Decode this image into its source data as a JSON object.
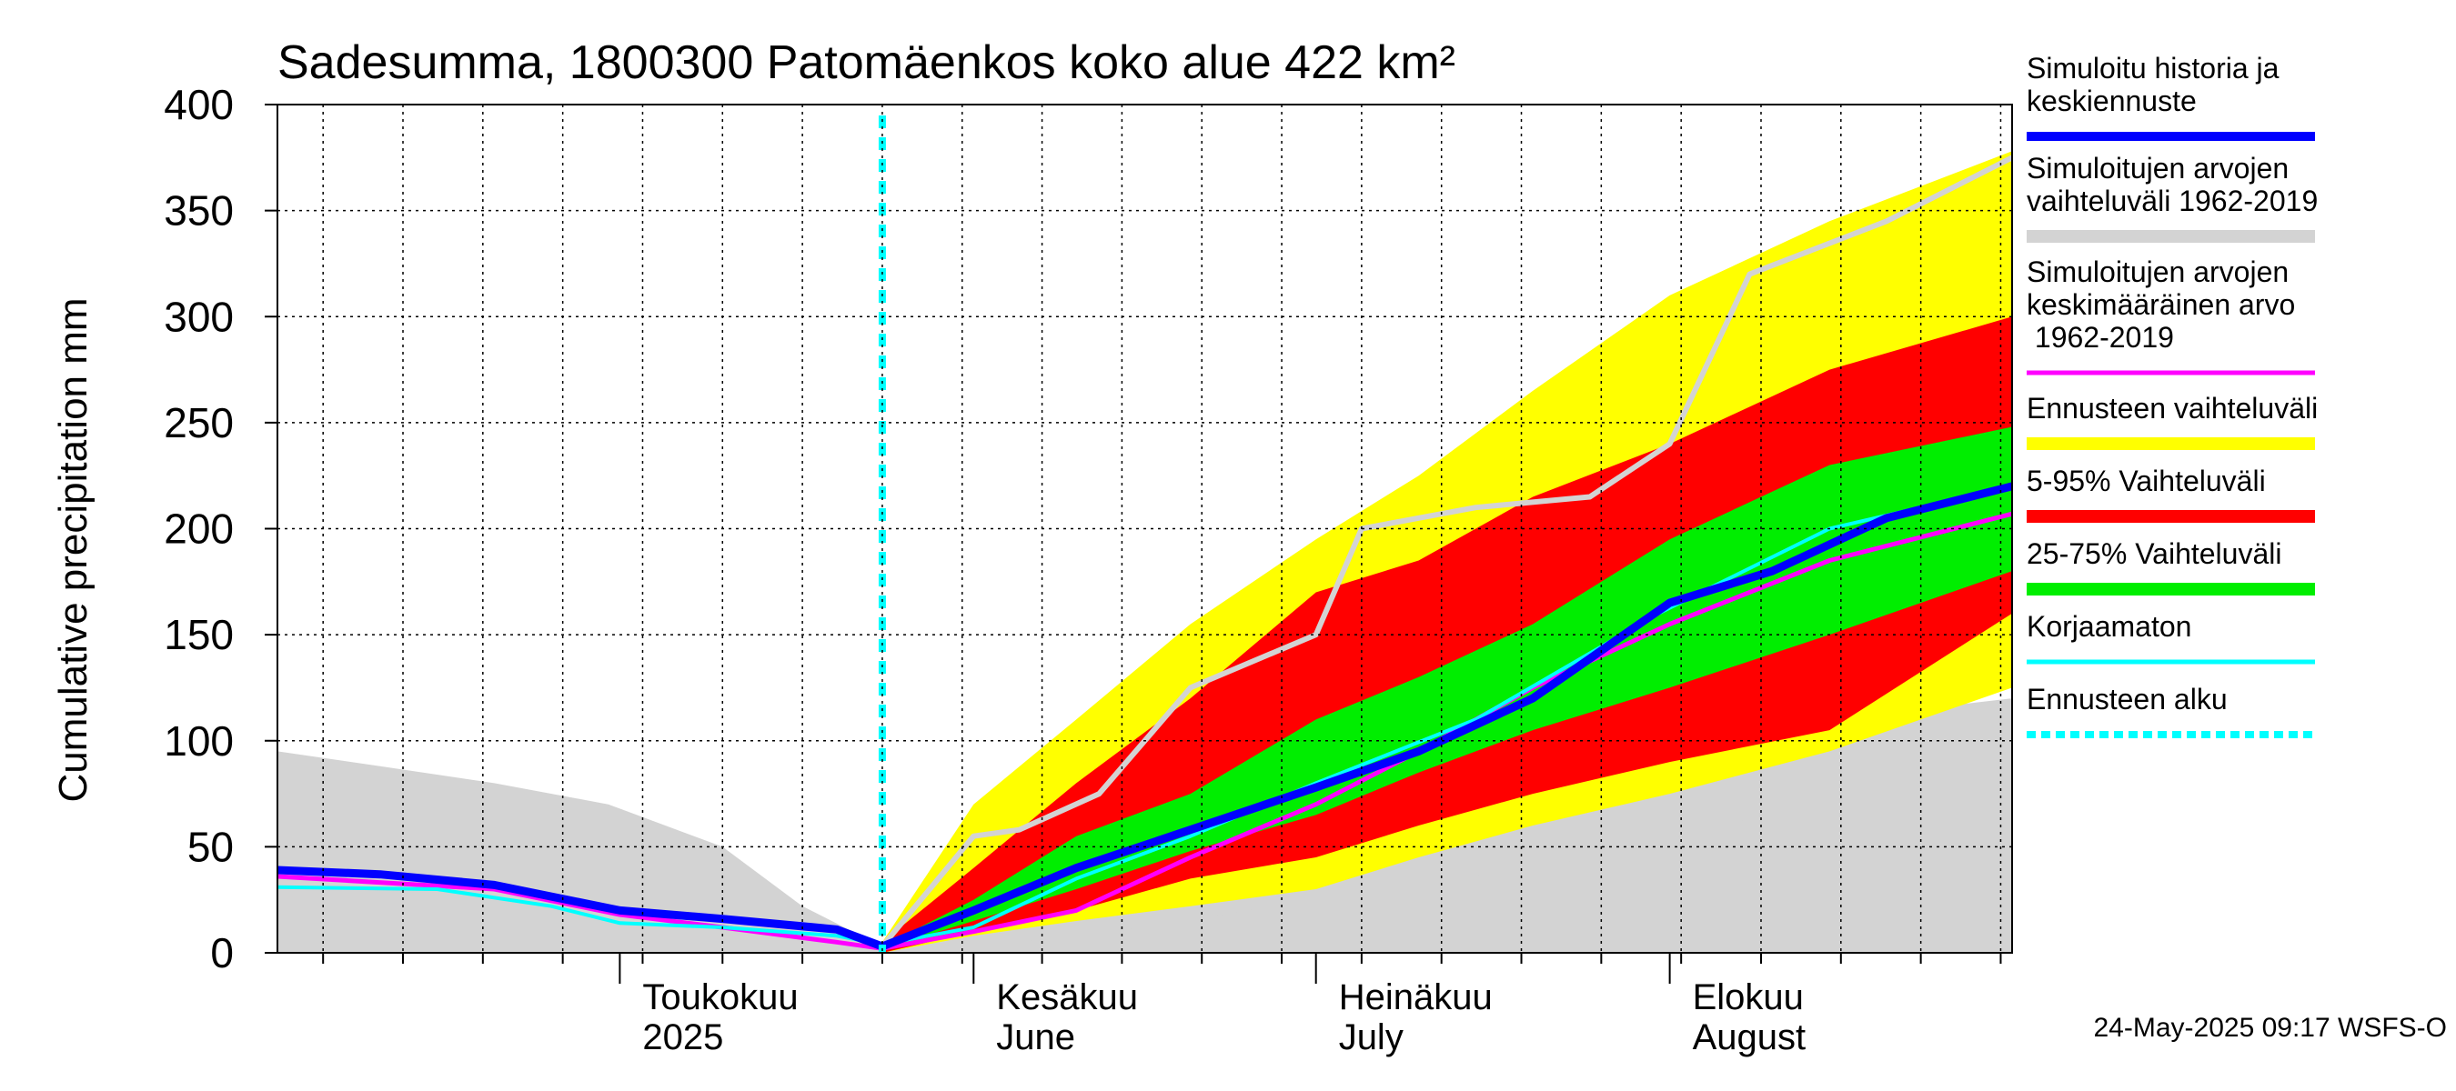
{
  "chart_data": {
    "type": "area",
    "title": "Sadesumma, 1800300 Patomäenkos koko alue 422 km²",
    "ylabel": "Cumulative precipitation   mm",
    "ylim": [
      0,
      400
    ],
    "yticks": [
      0,
      50,
      100,
      150,
      200,
      250,
      300,
      350,
      400
    ],
    "x_domain": [
      "2025-04-01",
      "2025-08-31"
    ],
    "x_month_labels": [
      {
        "date": "2025-05-01",
        "line1": "Toukokuu",
        "line2": "2025"
      },
      {
        "date": "2025-06-01",
        "line1": "Kesäkuu",
        "line2": "June"
      },
      {
        "date": "2025-07-01",
        "line1": "Heinäkuu",
        "line2": "July"
      },
      {
        "date": "2025-08-01",
        "line1": "Elokuu",
        "line2": "August"
      }
    ],
    "forecast_start": "2025-05-24",
    "grid": true,
    "legend_position": "right",
    "colors": {
      "history_band": "#d3d3d3",
      "forecast_range": "#ffff00",
      "p5_95": "#ff0000",
      "p25_75": "#00ee00",
      "mean": "#ff00ff",
      "median": "#0000ff",
      "uncorrected": "#00ffff",
      "max_year": "#d3d3d3",
      "forecast_start": "#00ffff"
    },
    "series": [
      {
        "id": "history_band",
        "kind": "band",
        "x": [
          "2025-04-01",
          "2025-04-10",
          "2025-04-20",
          "2025-04-30",
          "2025-05-10",
          "2025-05-17",
          "2025-05-24",
          "2025-06-05",
          "2025-06-20",
          "2025-07-05",
          "2025-07-20",
          "2025-07-31",
          "2025-08-15",
          "2025-08-31"
        ],
        "low": [
          0,
          0,
          0,
          0,
          0,
          0,
          0,
          0,
          0,
          0,
          0,
          0,
          0,
          0
        ],
        "high": [
          95,
          88,
          80,
          70,
          50,
          22,
          3,
          12,
          28,
          50,
          70,
          90,
          110,
          120
        ]
      },
      {
        "id": "history_band_lower",
        "kind": "band",
        "x": [
          "2025-05-24",
          "2025-06-05",
          "2025-06-20",
          "2025-07-05",
          "2025-07-20",
          "2025-07-31",
          "2025-08-03",
          "2025-08-15",
          "2025-08-31"
        ],
        "low": [
          0,
          0,
          0,
          0,
          0,
          0,
          0,
          0,
          0
        ],
        "high": [
          0,
          5,
          15,
          30,
          40,
          50,
          58,
          70,
          80
        ]
      },
      {
        "id": "forecast_range",
        "kind": "band",
        "x": [
          "2025-05-24",
          "2025-06-01",
          "2025-06-10",
          "2025-06-20",
          "2025-07-01",
          "2025-07-10",
          "2025-07-20",
          "2025-08-01",
          "2025-08-15",
          "2025-08-31"
        ],
        "low": [
          0,
          8,
          15,
          22,
          30,
          45,
          60,
          75,
          95,
          125
        ],
        "high": [
          5,
          70,
          110,
          155,
          195,
          225,
          265,
          310,
          345,
          378
        ]
      },
      {
        "id": "p5_95",
        "kind": "band",
        "x": [
          "2025-05-24",
          "2025-06-01",
          "2025-06-10",
          "2025-06-20",
          "2025-07-01",
          "2025-07-10",
          "2025-07-20",
          "2025-08-01",
          "2025-08-15",
          "2025-08-31"
        ],
        "low": [
          0,
          10,
          20,
          35,
          45,
          60,
          75,
          90,
          105,
          160
        ],
        "high": [
          5,
          40,
          80,
          120,
          170,
          185,
          215,
          240,
          275,
          300
        ]
      },
      {
        "id": "p25_75",
        "kind": "band",
        "x": [
          "2025-05-24",
          "2025-06-01",
          "2025-06-10",
          "2025-06-20",
          "2025-07-01",
          "2025-07-10",
          "2025-07-20",
          "2025-08-01",
          "2025-08-15",
          "2025-08-31"
        ],
        "low": [
          2,
          15,
          30,
          48,
          65,
          85,
          105,
          125,
          150,
          180
        ],
        "high": [
          3,
          25,
          55,
          75,
          110,
          130,
          155,
          195,
          230,
          248
        ]
      },
      {
        "id": "max_year",
        "name": "Simuloitujen arvojen vaihteluväli 1962-2019",
        "kind": "line",
        "x": [
          "2025-05-24",
          "2025-06-01",
          "2025-06-05",
          "2025-06-12",
          "2025-06-20",
          "2025-07-01",
          "2025-07-05",
          "2025-07-15",
          "2025-07-25",
          "2025-08-01",
          "2025-08-08",
          "2025-08-20",
          "2025-08-31"
        ],
        "y": [
          3,
          55,
          58,
          75,
          125,
          150,
          200,
          210,
          215,
          240,
          320,
          345,
          375
        ]
      },
      {
        "id": "mean",
        "name": "Simuloitujen arvojen keskimääräinen arvo 1962-2019",
        "kind": "line",
        "x": [
          "2025-04-01",
          "2025-04-20",
          "2025-05-01",
          "2025-05-10",
          "2025-05-20",
          "2025-05-24",
          "2025-06-01",
          "2025-06-10",
          "2025-06-20",
          "2025-07-01",
          "2025-07-10",
          "2025-07-20",
          "2025-08-01",
          "2025-08-15",
          "2025-08-31"
        ],
        "y": [
          36,
          30,
          18,
          12,
          5,
          2,
          10,
          20,
          45,
          70,
          95,
          125,
          155,
          185,
          207
        ]
      },
      {
        "id": "uncorrected",
        "name": "Korjaamaton",
        "kind": "line",
        "x": [
          "2025-04-01",
          "2025-04-15",
          "2025-04-25",
          "2025-05-01",
          "2025-05-10",
          "2025-05-20",
          "2025-05-24",
          "2025-06-01",
          "2025-06-10",
          "2025-06-20",
          "2025-07-01",
          "2025-07-15",
          "2025-07-31",
          "2025-08-15",
          "2025-08-31"
        ],
        "y": [
          31,
          30,
          22,
          14,
          12,
          8,
          4,
          12,
          35,
          55,
          80,
          110,
          160,
          200,
          220
        ]
      },
      {
        "id": "median",
        "name": "Simuloitu historia ja keskiennuste",
        "kind": "line",
        "x": [
          "2025-04-01",
          "2025-04-10",
          "2025-04-20",
          "2025-05-01",
          "2025-05-10",
          "2025-05-20",
          "2025-05-24",
          "2025-06-01",
          "2025-06-10",
          "2025-06-20",
          "2025-07-01",
          "2025-07-10",
          "2025-07-20",
          "2025-08-01",
          "2025-08-10",
          "2025-08-20",
          "2025-08-31"
        ],
        "y": [
          39,
          37,
          32,
          20,
          16,
          11,
          3,
          20,
          40,
          58,
          78,
          95,
          120,
          165,
          180,
          205,
          220
        ]
      }
    ],
    "legend": [
      {
        "label": "Simuloitu historia ja keskiennuste",
        "color_key": "median"
      },
      {
        "label": "Simuloitujen arvojen vaihteluväli 1962-2019",
        "color_key": "history_band"
      },
      {
        "label": "Simuloitujen arvojen keskimääräinen arvo 1962-2019",
        "color_key": "mean"
      },
      {
        "label": "Ennusteen vaihteluväli",
        "color_key": "forecast_range"
      },
      {
        "label": "5-95% Vaihteluväli",
        "color_key": "p5_95"
      },
      {
        "label": "25-75% Vaihteluväli",
        "color_key": "p25_75"
      },
      {
        "label": "Korjaamaton",
        "color_key": "uncorrected"
      },
      {
        "label": "Ennusteen alku",
        "color_key": "forecast_start"
      }
    ],
    "footer": "24-May-2025 09:17 WSFS-O"
  }
}
